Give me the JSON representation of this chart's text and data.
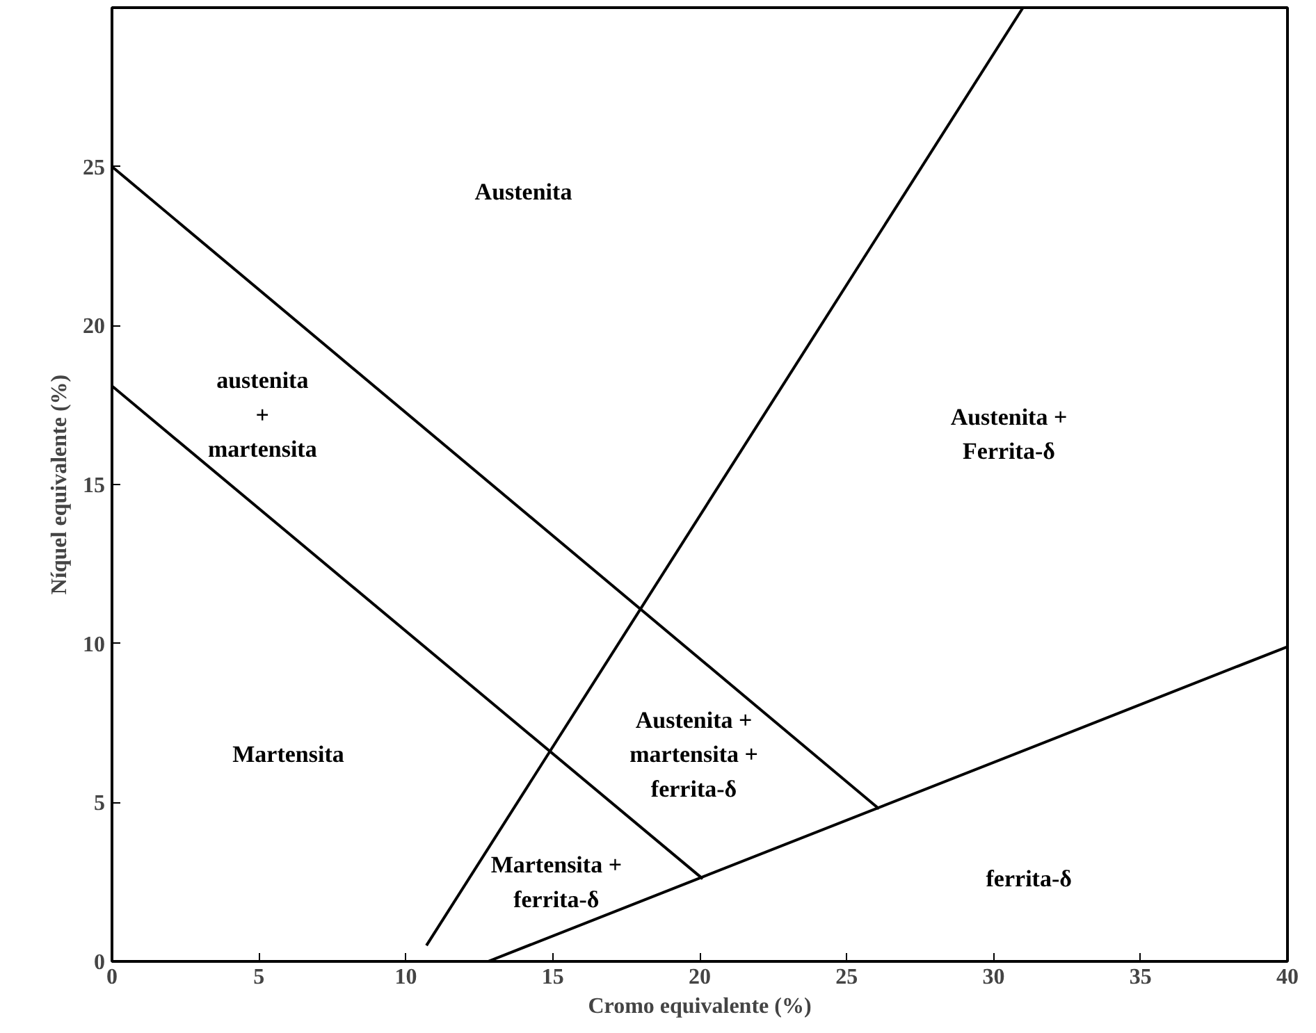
{
  "chart_data": {
    "type": "line",
    "xlabel": "Cromo equivalente (%)",
    "ylabel": "Níquel equivalente (%)",
    "xlim": [
      0,
      40
    ],
    "ylim": [
      0,
      30
    ],
    "xticks": [
      0,
      5,
      10,
      15,
      20,
      25,
      30,
      35,
      40
    ],
    "yticks": [
      0,
      5,
      10,
      15,
      20,
      25
    ],
    "grid": false,
    "marker": "none",
    "line_style": "solid",
    "series": [
      {
        "color": "#000000",
        "x": [
          0,
          26.1
        ],
        "values": [
          25,
          4.8
        ]
      },
      {
        "color": "#000000",
        "x": [
          0,
          20.1
        ],
        "values": [
          18.1,
          2.6
        ]
      },
      {
        "color": "#000000",
        "x": [
          10.7,
          31.0
        ],
        "values": [
          0.5,
          30
        ]
      },
      {
        "color": "#000000",
        "x": [
          12.8,
          40
        ],
        "values": [
          0,
          9.9
        ]
      }
    ],
    "annotations": [
      "Austenita",
      "austenita\n+\nmartensita",
      "Austenita +\nFerrita-δ",
      "Martensita",
      "Austenita +\nmartensita +\nferrita-δ",
      "Martensita +\nferrita-δ",
      "ferrita-δ"
    ]
  }
}
